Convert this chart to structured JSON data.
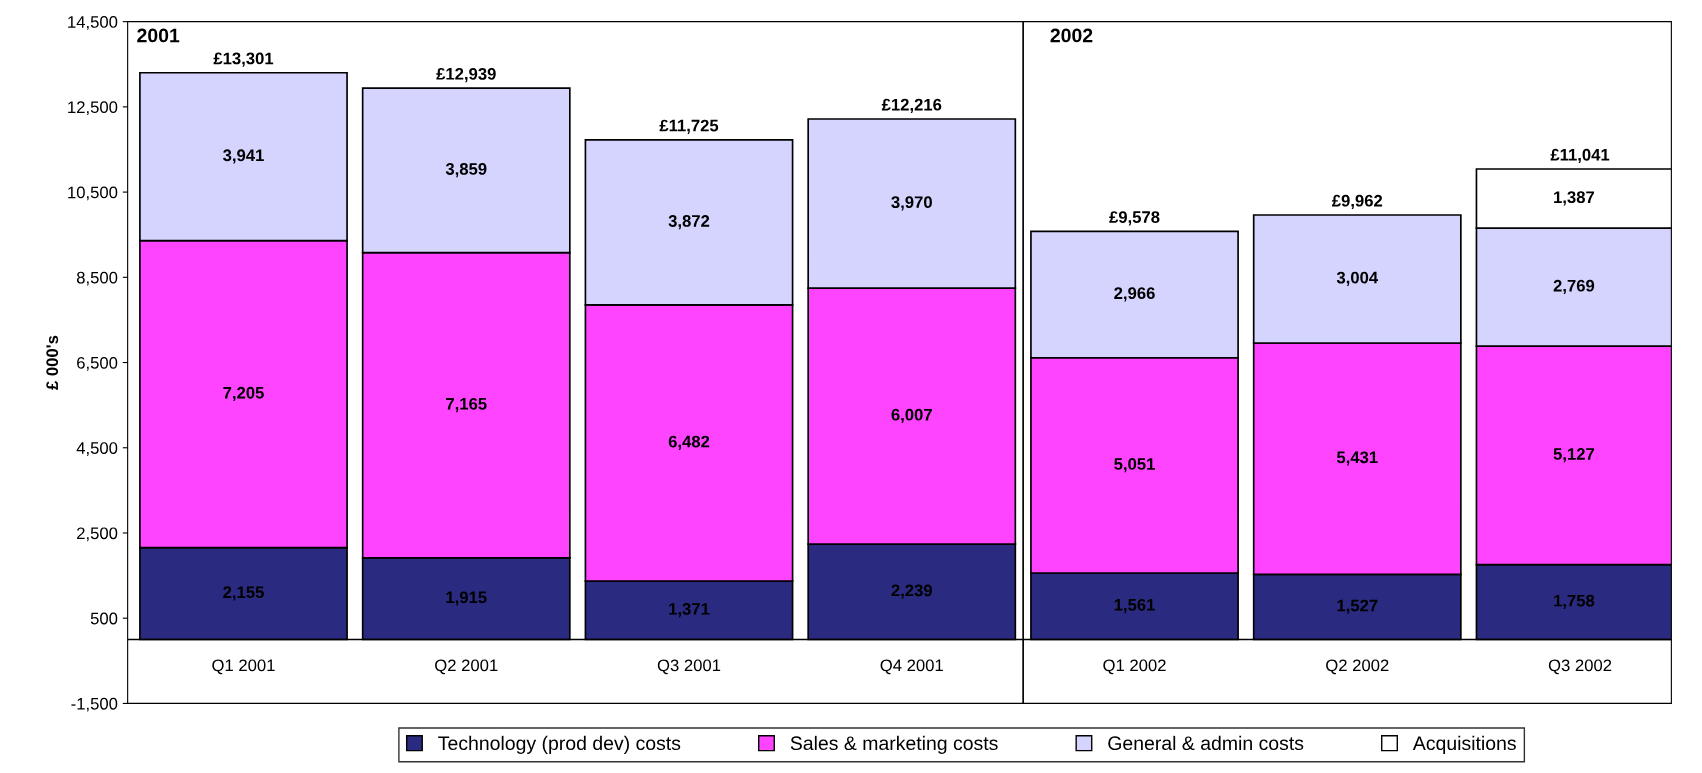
{
  "chart_data": {
    "type": "bar",
    "stacked": true,
    "ylabel": "£ 000's",
    "categories": [
      "Q1 2001",
      "Q2 2001",
      "Q3 2001",
      "Q4 2001",
      "Q1 2002",
      "Q2 2002",
      "Q3 2002"
    ],
    "series": [
      {
        "name": "Technology (prod dev) costs",
        "color": "#2a2a80",
        "values": [
          2155,
          1915,
          1371,
          2239,
          1561,
          1527,
          1758
        ],
        "value_labels": [
          "2,155",
          "1,915",
          "1,371",
          "2,239",
          "1,561",
          "1,527",
          "1,758"
        ]
      },
      {
        "name": "Sales & marketing costs",
        "color": "#ff44ff",
        "values": [
          7205,
          7165,
          6482,
          6007,
          5051,
          5431,
          5127
        ],
        "value_labels": [
          "7,205",
          "7,165",
          "6,482",
          "6,007",
          "5,051",
          "5,431",
          "5,127"
        ]
      },
      {
        "name": "General & admin costs",
        "color": "#d4d4ff",
        "values": [
          3941,
          3859,
          3872,
          3970,
          2966,
          3004,
          2769
        ],
        "value_labels": [
          "3,941",
          "3,859",
          "3,872",
          "3,970",
          "2,966",
          "3,004",
          "2,769"
        ]
      },
      {
        "name": "Acquisitions",
        "color": "#ffffff",
        "values": [
          null,
          null,
          null,
          null,
          null,
          null,
          1387
        ],
        "value_labels": [
          null,
          null,
          null,
          null,
          null,
          null,
          "1,387"
        ]
      }
    ],
    "totals": [
      "£13,301",
      "£12,939",
      "£11,725",
      "£12,216",
      "£9,578",
      "£9,962",
      "£11,041"
    ],
    "ylim": [
      -1500,
      14500
    ],
    "yticks": [
      {
        "value": -1500,
        "label": "-1,500"
      },
      {
        "value": 500,
        "label": "500"
      },
      {
        "value": 2500,
        "label": "2,500"
      },
      {
        "value": 4500,
        "label": "4,500"
      },
      {
        "value": 6500,
        "label": "6,500"
      },
      {
        "value": 8500,
        "label": "8,500"
      },
      {
        "value": 10500,
        "label": "10,500"
      },
      {
        "value": 12500,
        "label": "12,500"
      },
      {
        "value": 14500,
        "label": "14,500"
      }
    ],
    "annotations": [
      "2001",
      "2002"
    ],
    "grid": false,
    "legend": "bottom"
  }
}
